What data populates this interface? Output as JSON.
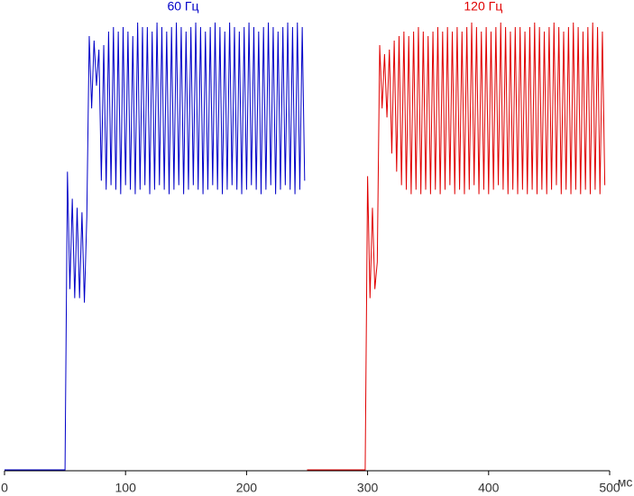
{
  "chart_data": {
    "type": "line",
    "x_label": "мс",
    "xlim": [
      0,
      500
    ],
    "xticks": [
      0,
      100,
      200,
      300,
      400,
      500
    ],
    "ylim": [
      0,
      100
    ],
    "series": [
      {
        "name": "60 Гц",
        "color": "#0000c8",
        "x": [
          0,
          50,
          52,
          54,
          56,
          58,
          60,
          62,
          64,
          66,
          68,
          70,
          72,
          74,
          76,
          78,
          80,
          82,
          84,
          86,
          88,
          90,
          92,
          94,
          96,
          98,
          100,
          102,
          104,
          106,
          108,
          110,
          112,
          114,
          116,
          118,
          120,
          122,
          124,
          126,
          128,
          130,
          132,
          134,
          136,
          138,
          140,
          142,
          144,
          146,
          148,
          150,
          152,
          154,
          156,
          158,
          160,
          162,
          164,
          166,
          168,
          170,
          172,
          174,
          176,
          178,
          180,
          182,
          184,
          186,
          188,
          190,
          192,
          194,
          196,
          198,
          200,
          202,
          204,
          206,
          208,
          210,
          212,
          214,
          216,
          218,
          220,
          222,
          224,
          226,
          228,
          230,
          232,
          234,
          236,
          238,
          240,
          242,
          244,
          246,
          248
        ],
        "values": [
          0,
          0,
          66,
          40,
          60,
          38,
          58,
          38,
          57,
          37,
          56,
          96,
          80,
          95,
          85,
          93,
          64,
          94,
          62,
          97,
          63,
          98,
          62,
          97,
          61,
          98,
          63,
          97,
          62,
          96,
          61,
          99,
          62,
          98,
          63,
          98,
          61,
          97,
          62,
          99,
          63,
          98,
          62,
          97,
          61,
          98,
          62,
          99,
          63,
          98,
          61,
          97,
          62,
          98,
          63,
          99,
          62,
          98,
          61,
          97,
          62,
          98,
          63,
          99,
          62,
          98,
          61,
          97,
          62,
          99,
          63,
          98,
          62,
          97,
          61,
          98,
          62,
          99,
          63,
          98,
          62,
          97,
          61,
          98,
          62,
          99,
          63,
          98,
          61,
          97,
          62,
          98,
          63,
          99,
          62,
          98,
          61,
          99,
          62,
          98,
          64
        ]
      },
      {
        "name": "120 Гц",
        "color": "#e00000",
        "x": [
          250,
          298,
          300,
          302,
          304,
          306,
          308,
          310,
          312,
          314,
          316,
          318,
          320,
          322,
          324,
          326,
          328,
          330,
          332,
          334,
          336,
          338,
          340,
          342,
          344,
          346,
          348,
          350,
          352,
          354,
          356,
          358,
          360,
          362,
          364,
          366,
          368,
          370,
          372,
          374,
          376,
          378,
          380,
          382,
          384,
          386,
          388,
          390,
          392,
          394,
          396,
          398,
          400,
          402,
          404,
          406,
          408,
          410,
          412,
          414,
          416,
          418,
          420,
          422,
          424,
          426,
          428,
          430,
          432,
          434,
          436,
          438,
          440,
          442,
          444,
          446,
          448,
          450,
          452,
          454,
          456,
          458,
          460,
          462,
          464,
          466,
          468,
          470,
          472,
          474,
          476,
          478,
          480,
          482,
          484,
          486,
          488,
          490,
          492,
          494,
          496
        ],
        "values": [
          0,
          0,
          65,
          38,
          58,
          40,
          46,
          94,
          80,
          92,
          78,
          93,
          70,
          95,
          66,
          96,
          63,
          97,
          62,
          96,
          61,
          97,
          62,
          98,
          61,
          97,
          62,
          96,
          61,
          97,
          62,
          98,
          61,
          97,
          62,
          98,
          63,
          97,
          61,
          98,
          62,
          97,
          61,
          98,
          62,
          99,
          63,
          98,
          61,
          97,
          62,
          98,
          61,
          97,
          62,
          98,
          63,
          99,
          62,
          98,
          61,
          97,
          62,
          98,
          61,
          98,
          62,
          97,
          61,
          98,
          62,
          99,
          61,
          98,
          62,
          97,
          61,
          98,
          62,
          99,
          63,
          98,
          61,
          97,
          62,
          98,
          61,
          99,
          62,
          98,
          61,
          97,
          62,
          98,
          61,
          99,
          62,
          98,
          61,
          97,
          63
        ]
      }
    ]
  }
}
